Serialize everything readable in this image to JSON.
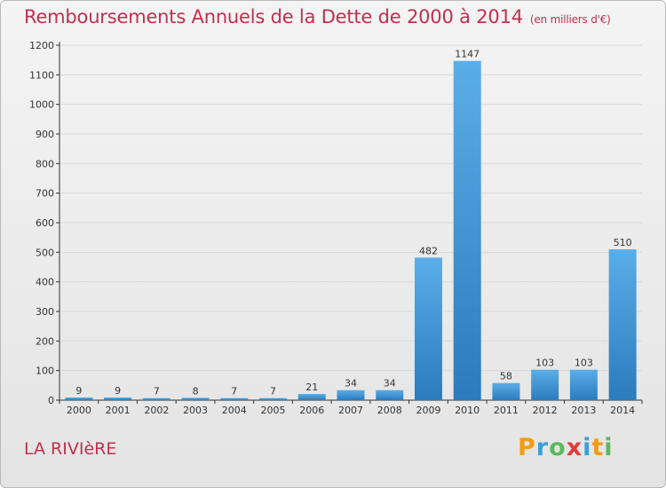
{
  "chart_data": {
    "type": "bar",
    "title": "Remboursements Annuels de la Dette de 2000 à 2014",
    "subtitle": "(en milliers d'€)",
    "categories": [
      "2000",
      "2001",
      "2002",
      "2003",
      "2004",
      "2005",
      "2006",
      "2007",
      "2008",
      "2009",
      "2010",
      "2011",
      "2012",
      "2013",
      "2014"
    ],
    "values": [
      9,
      9,
      7,
      8,
      7,
      7,
      21,
      34,
      34,
      482,
      1147,
      58,
      103,
      103,
      510
    ],
    "data_labels": [
      "9",
      "9",
      "7",
      "8",
      "7",
      "7",
      "21",
      "34",
      "34",
      "482",
      "1147",
      "58",
      "103",
      "103",
      "510"
    ],
    "ylim": [
      0,
      1200
    ],
    "yticks": [
      0,
      100,
      200,
      300,
      400,
      500,
      600,
      700,
      800,
      900,
      1000,
      1100,
      1200
    ],
    "ytick_labels": [
      "0",
      "100",
      "200",
      "300",
      "400",
      "500",
      "600",
      "700",
      "800",
      "900",
      "1000",
      "1100",
      "1200"
    ],
    "grid": true,
    "bar_color": "#3a8fd3",
    "xlabel": "",
    "ylabel": ""
  },
  "footer": {
    "commune": "LA RIVIèRE",
    "brand_letters": [
      "P",
      "r",
      "o",
      "x",
      "i",
      "t",
      "i"
    ],
    "brand_colors": [
      "#f39c12",
      "#3aa0d8",
      "#5cb85c",
      "#e03c3c",
      "#3aa0d8",
      "#f39c12",
      "#5cb85c"
    ]
  },
  "colors": {
    "title": "#c0304e",
    "axis": "#333333",
    "grid": "#d9d9d9"
  }
}
